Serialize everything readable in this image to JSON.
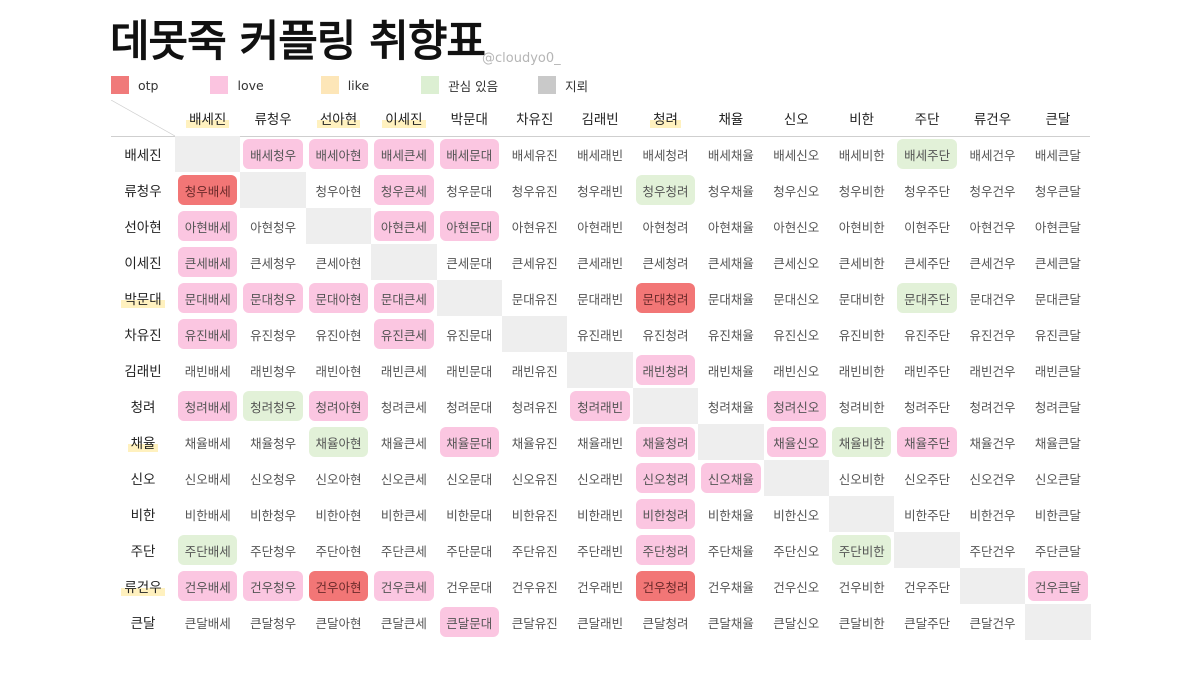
{
  "header": {
    "title": "데못죽 커플링 취향표",
    "handle": "@cloudyo0_"
  },
  "legend": [
    {
      "key": "otp",
      "label": "otp",
      "color": "#f07a7a"
    },
    {
      "key": "love",
      "label": "love",
      "color": "#fbc4e0"
    },
    {
      "key": "like",
      "label": "like",
      "color": "#fde6b8"
    },
    {
      "key": "interest",
      "label": "관심 있음",
      "color": "#dcefd2"
    },
    {
      "key": "mine",
      "label": "지뢰",
      "color": "#c9c9c9"
    }
  ],
  "mark_colors": {
    "otp": "#f27676",
    "love": "#fbc6e1",
    "interest": "#e2f1d8",
    "diag": "#eeeeee"
  },
  "columns": [
    {
      "label": "배세진",
      "underline": true
    },
    {
      "label": "류청우",
      "underline": false
    },
    {
      "label": "선아현",
      "underline": true
    },
    {
      "label": "이세진",
      "underline": true
    },
    {
      "label": "박문대",
      "underline": false
    },
    {
      "label": "차유진",
      "underline": false
    },
    {
      "label": "김래빈",
      "underline": false
    },
    {
      "label": "청려",
      "underline": true
    },
    {
      "label": "채율",
      "underline": false
    },
    {
      "label": "신오",
      "underline": false
    },
    {
      "label": "비한",
      "underline": false
    },
    {
      "label": "주단",
      "underline": false
    },
    {
      "label": "류건우",
      "underline": false
    },
    {
      "label": "큰달",
      "underline": false
    }
  ],
  "rows": [
    {
      "label": "배세진",
      "underline": false,
      "cells": [
        "",
        "배세청우",
        "배세아현",
        "배세큰세",
        "배세문대",
        "배세유진",
        "배세래빈",
        "배세청려",
        "배세채율",
        "배세신오",
        "배세비한",
        "배세주단",
        "배세건우",
        "배세큰달"
      ],
      "marks": [
        "diag",
        "love",
        "love",
        "love",
        "love",
        "",
        "",
        "",
        "",
        "",
        "",
        "interest",
        "",
        ""
      ]
    },
    {
      "label": "류청우",
      "underline": false,
      "cells": [
        "청우배세",
        "",
        "청우아현",
        "청우큰세",
        "청우문대",
        "청우유진",
        "청우래빈",
        "청우청려",
        "청우채율",
        "청우신오",
        "청우비한",
        "청우주단",
        "청우건우",
        "청우큰달"
      ],
      "marks": [
        "otp",
        "diag",
        "",
        "love",
        "",
        "",
        "",
        "interest",
        "",
        "",
        "",
        "",
        "",
        ""
      ]
    },
    {
      "label": "선아현",
      "underline": false,
      "cells": [
        "아현배세",
        "아현청우",
        "",
        "아현큰세",
        "아현문대",
        "아현유진",
        "아현래빈",
        "아현청려",
        "아현채율",
        "아현신오",
        "아현비한",
        "이현주단",
        "아현건우",
        "아현큰달"
      ],
      "marks": [
        "love",
        "",
        "diag",
        "love",
        "love",
        "",
        "",
        "",
        "",
        "",
        "",
        "",
        "",
        ""
      ]
    },
    {
      "label": "이세진",
      "underline": false,
      "cells": [
        "큰세배세",
        "큰세청우",
        "큰세아현",
        "",
        "큰세문대",
        "큰세유진",
        "큰세래빈",
        "큰세청려",
        "큰세채율",
        "큰세신오",
        "큰세비한",
        "큰세주단",
        "큰세건우",
        "큰세큰달"
      ],
      "marks": [
        "love",
        "",
        "",
        "diag",
        "",
        "",
        "",
        "",
        "",
        "",
        "",
        "",
        "",
        ""
      ]
    },
    {
      "label": "박문대",
      "underline": true,
      "cells": [
        "문대배세",
        "문대청우",
        "문대아현",
        "문대큰세",
        "",
        "문대유진",
        "문대래빈",
        "문대청려",
        "문대채율",
        "문대신오",
        "문대비한",
        "문대주단",
        "문대건우",
        "문대큰달"
      ],
      "marks": [
        "love",
        "love",
        "love",
        "love",
        "diag",
        "",
        "",
        "otp",
        "",
        "",
        "",
        "interest",
        "",
        ""
      ]
    },
    {
      "label": "차유진",
      "underline": false,
      "cells": [
        "유진배세",
        "유진청우",
        "유진아현",
        "유진큰세",
        "유진문대",
        "",
        "유진래빈",
        "유진청려",
        "유진채율",
        "유진신오",
        "유진비한",
        "유진주단",
        "유진건우",
        "유진큰달"
      ],
      "marks": [
        "love",
        "",
        "",
        "love",
        "",
        "diag",
        "",
        "",
        "",
        "",
        "",
        "",
        "",
        ""
      ]
    },
    {
      "label": "김래빈",
      "underline": false,
      "cells": [
        "래빈배세",
        "래빈청우",
        "래빈아현",
        "래빈큰세",
        "래빈문대",
        "래빈유진",
        "",
        "래빈청려",
        "래빈채율",
        "래빈신오",
        "래빈비한",
        "래빈주단",
        "래빈건우",
        "래빈큰달"
      ],
      "marks": [
        "",
        "",
        "",
        "",
        "",
        "",
        "diag",
        "love",
        "",
        "",
        "",
        "",
        "",
        ""
      ]
    },
    {
      "label": "청려",
      "underline": false,
      "cells": [
        "청려배세",
        "청려청우",
        "청려아현",
        "청려큰세",
        "청려문대",
        "청려유진",
        "청려래빈",
        "",
        "청려채율",
        "청려신오",
        "청려비한",
        "청려주단",
        "청려건우",
        "청려큰달"
      ],
      "marks": [
        "love",
        "interest",
        "love",
        "",
        "",
        "",
        "love",
        "diag",
        "",
        "love",
        "",
        "",
        "",
        ""
      ]
    },
    {
      "label": "채율",
      "underline": true,
      "cells": [
        "채율배세",
        "채율청우",
        "채율아현",
        "채율큰세",
        "채율문대",
        "채율유진",
        "채율래빈",
        "채율청려",
        "",
        "채율신오",
        "채율비한",
        "채율주단",
        "채율건우",
        "채율큰달"
      ],
      "marks": [
        "",
        "",
        "interest",
        "",
        "love",
        "",
        "",
        "love",
        "diag",
        "love",
        "interest",
        "love",
        "",
        ""
      ]
    },
    {
      "label": "신오",
      "underline": false,
      "cells": [
        "신오배세",
        "신오청우",
        "신오아현",
        "신오큰세",
        "신오문대",
        "신오유진",
        "신오래빈",
        "신오청려",
        "신오채율",
        "",
        "신오비한",
        "신오주단",
        "신오건우",
        "신오큰달"
      ],
      "marks": [
        "",
        "",
        "",
        "",
        "",
        "",
        "",
        "love",
        "love",
        "diag",
        "",
        "",
        "",
        ""
      ]
    },
    {
      "label": "비한",
      "underline": false,
      "cells": [
        "비한배세",
        "비한청우",
        "비한아현",
        "비한큰세",
        "비한문대",
        "비한유진",
        "비한래빈",
        "비한청려",
        "비한채율",
        "비한신오",
        "",
        "비한주단",
        "비한건우",
        "비한큰달"
      ],
      "marks": [
        "",
        "",
        "",
        "",
        "",
        "",
        "",
        "love",
        "",
        "",
        "diag",
        "",
        "",
        ""
      ]
    },
    {
      "label": "주단",
      "underline": false,
      "cells": [
        "주단배세",
        "주단청우",
        "주단아현",
        "주단큰세",
        "주단문대",
        "주단유진",
        "주단래빈",
        "주단청려",
        "주단채율",
        "주단신오",
        "주단비한",
        "",
        "주단건우",
        "주단큰달"
      ],
      "marks": [
        "interest",
        "",
        "",
        "",
        "",
        "",
        "",
        "love",
        "",
        "",
        "interest",
        "diag",
        "",
        ""
      ]
    },
    {
      "label": "류건우",
      "underline": true,
      "cells": [
        "건우배세",
        "건우청우",
        "건우아현",
        "건우큰세",
        "건우문대",
        "건우유진",
        "건우래빈",
        "건우청려",
        "건우채율",
        "건우신오",
        "건우비한",
        "건우주단",
        "",
        "건우큰달"
      ],
      "marks": [
        "love",
        "love",
        "otp",
        "love",
        "",
        "",
        "",
        "otp",
        "",
        "",
        "",
        "",
        "diag",
        "love"
      ]
    },
    {
      "label": "큰달",
      "underline": false,
      "cells": [
        "큰달배세",
        "큰달청우",
        "큰달아현",
        "큰달큰세",
        "큰달문대",
        "큰달유진",
        "큰달래빈",
        "큰달청려",
        "큰달채율",
        "큰달신오",
        "큰달비한",
        "큰달주단",
        "큰달건우",
        ""
      ],
      "marks": [
        "",
        "",
        "",
        "",
        "love",
        "",
        "",
        "",
        "",
        "",
        "",
        "",
        "",
        "diag"
      ]
    }
  ]
}
